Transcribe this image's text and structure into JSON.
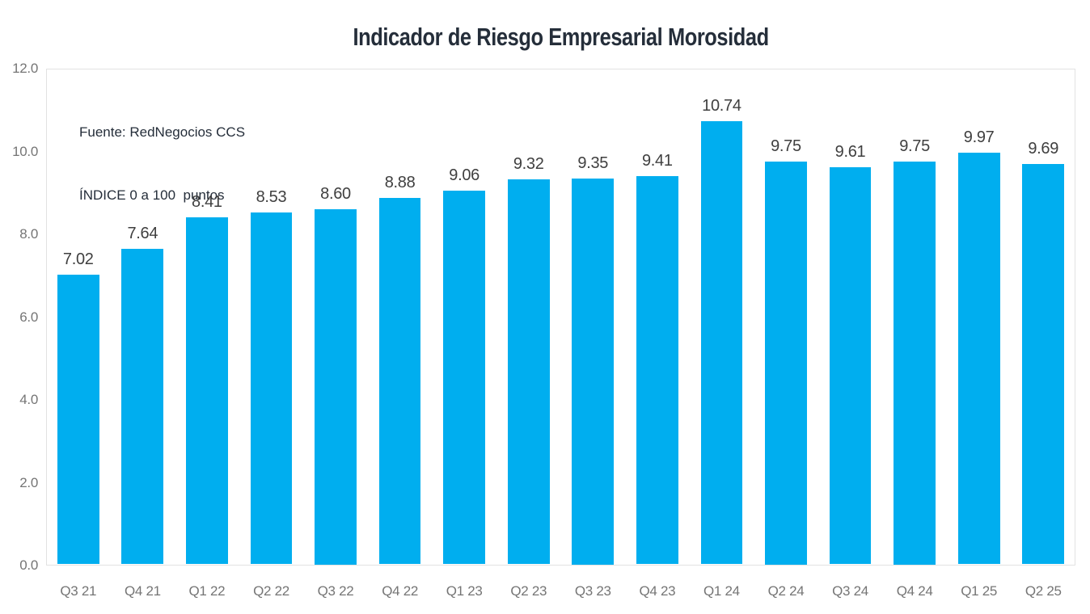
{
  "annotation": {
    "line1": "Fuente: RedNegocios CCS",
    "line2": "ÍNDICE 0 a 100  puntos"
  },
  "chart_data": {
    "type": "bar",
    "title": "Indicador de Riesgo Empresarial Morosidad",
    "categories": [
      "Q3 21",
      "Q4 21",
      "Q1 22",
      "Q2 22",
      "Q3 22",
      "Q4 22",
      "Q1 23",
      "Q2 23",
      "Q3 23",
      "Q4 23",
      "Q1 24",
      "Q2 24",
      "Q3 24",
      "Q4 24",
      "Q1 25",
      "Q2 25"
    ],
    "values": [
      7.02,
      7.64,
      8.41,
      8.53,
      8.6,
      8.88,
      9.06,
      9.32,
      9.35,
      9.41,
      10.74,
      9.75,
      9.61,
      9.75,
      9.97,
      9.69
    ],
    "value_labels": [
      "7.02",
      "7.64",
      "8.41",
      "8.53",
      "8.60",
      "8.88",
      "9.06",
      "9.32",
      "9.35",
      "9.41",
      "10.74",
      "9.75",
      "9.61",
      "9.75",
      "9.97",
      "9.69"
    ],
    "xlabel": "",
    "ylabel": "",
    "ylim": [
      0,
      12
    ],
    "yticks": [
      0,
      2,
      4,
      6,
      8,
      10,
      12
    ],
    "ytick_labels": [
      "0.0",
      "2.0",
      "4.0",
      "6.0",
      "8.0",
      "10.0",
      "12.0"
    ],
    "grid": false,
    "legend": false,
    "bar_color": "#00AEEF",
    "title_color": "#252e3a",
    "annotation_color": "#252e3a",
    "value_label_color": "#3f3f3f",
    "tick_label_color": "#757575",
    "plot_border_color": "#e2e2e2"
  }
}
